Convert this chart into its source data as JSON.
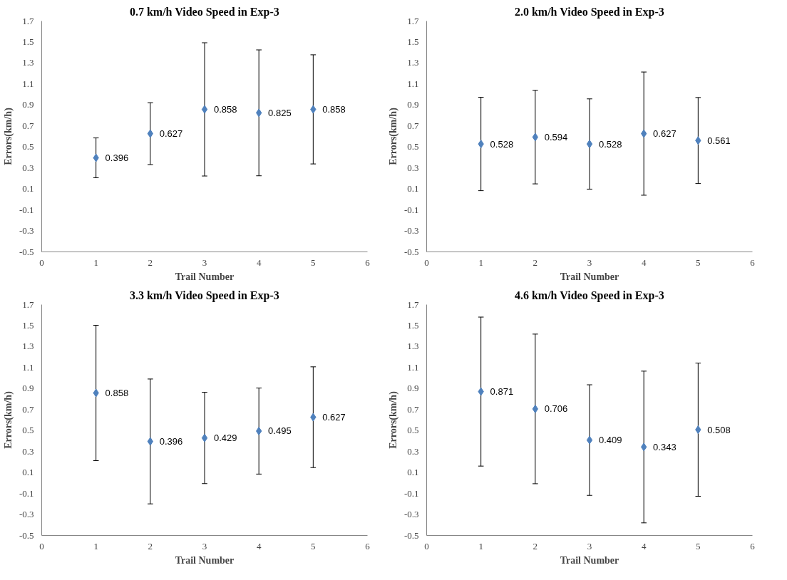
{
  "chart_data": [
    {
      "type": "scatter",
      "title": "0.7 km/h Video Speed in Exp-3",
      "xlabel": "Trail Number",
      "ylabel": "Errors(km/h)",
      "x": [
        1,
        2,
        3,
        4,
        5
      ],
      "values": [
        0.396,
        0.627,
        0.858,
        0.825,
        0.858
      ],
      "errors": [
        0.19,
        0.295,
        0.635,
        0.6,
        0.52
      ],
      "color": "#4f81bd",
      "marker": "diamond",
      "data_labels": true,
      "xlim": [
        0,
        6
      ],
      "xticks": [
        0,
        1,
        2,
        3,
        4,
        5,
        6
      ],
      "ylim": [
        -0.5,
        1.7
      ],
      "yticks": [
        -0.5,
        -0.3,
        -0.1,
        0.1,
        0.3,
        0.5,
        0.7,
        0.9,
        1.1,
        1.3,
        1.5,
        1.7
      ],
      "grid": false
    },
    {
      "type": "scatter",
      "title": "2.0 km/h Video Speed in Exp-3",
      "xlabel": "Trail Number",
      "ylabel": "Errors(km/h)",
      "x": [
        1,
        2,
        3,
        4,
        5
      ],
      "values": [
        0.528,
        0.594,
        0.528,
        0.627,
        0.561
      ],
      "errors": [
        0.445,
        0.446,
        0.43,
        0.587,
        0.41
      ],
      "color": "#4f81bd",
      "marker": "diamond",
      "data_labels": true,
      "xlim": [
        0,
        6
      ],
      "xticks": [
        0,
        1,
        2,
        3,
        4,
        5,
        6
      ],
      "ylim": [
        -0.5,
        1.7
      ],
      "yticks": [
        -0.5,
        -0.3,
        -0.1,
        0.1,
        0.3,
        0.5,
        0.7,
        0.9,
        1.1,
        1.3,
        1.5,
        1.7
      ],
      "grid": false
    },
    {
      "type": "scatter",
      "title": "3.3 km/h Video Speed in Exp-3",
      "xlabel": "Trail Number",
      "ylabel": "Errors(km/h)",
      "x": [
        1,
        2,
        3,
        4,
        5
      ],
      "values": [
        0.858,
        0.396,
        0.429,
        0.495,
        0.627
      ],
      "errors": [
        0.645,
        0.595,
        0.435,
        0.41,
        0.48
      ],
      "color": "#4f81bd",
      "marker": "diamond",
      "data_labels": true,
      "xlim": [
        0,
        6
      ],
      "xticks": [
        0,
        1,
        2,
        3,
        4,
        5,
        6
      ],
      "ylim": [
        -0.5,
        1.7
      ],
      "yticks": [
        -0.5,
        -0.3,
        -0.1,
        0.1,
        0.3,
        0.5,
        0.7,
        0.9,
        1.1,
        1.3,
        1.5,
        1.7
      ],
      "grid": false
    },
    {
      "type": "scatter",
      "title": "4.6 km/h Video Speed in Exp-3",
      "xlabel": "Trail Number",
      "ylabel": "Errors(km/h)",
      "x": [
        1,
        2,
        3,
        4,
        5
      ],
      "values": [
        0.871,
        0.706,
        0.409,
        0.343,
        0.508
      ],
      "errors": [
        0.71,
        0.713,
        0.527,
        0.723,
        0.635
      ],
      "color": "#4f81bd",
      "marker": "diamond",
      "data_labels": true,
      "xlim": [
        0,
        6
      ],
      "xticks": [
        0,
        1,
        2,
        3,
        4,
        5,
        6
      ],
      "ylim": [
        -0.5,
        1.7
      ],
      "yticks": [
        -0.5,
        -0.3,
        -0.1,
        0.1,
        0.3,
        0.5,
        0.7,
        0.9,
        1.1,
        1.3,
        1.5,
        1.7
      ],
      "grid": false
    }
  ]
}
